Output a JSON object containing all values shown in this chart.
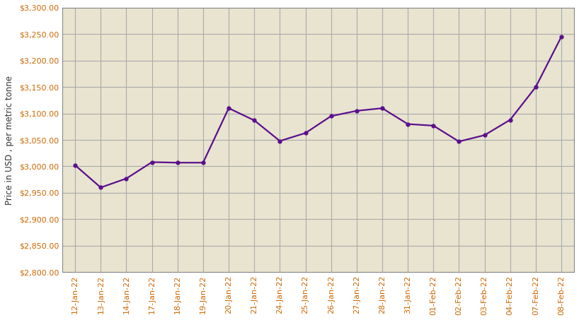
{
  "dates": [
    "12-Jan-22",
    "13-Jan-22",
    "14-Jan-22",
    "17-Jan-22",
    "18-Jan-22",
    "19-Jan-22",
    "20-Jan-22",
    "21-Jan-22",
    "24-Jan-22",
    "25-Jan-22",
    "26-Jan-22",
    "27-Jan-22",
    "28-Jan-22",
    "31-Jan-22",
    "01-Feb-22",
    "02-Feb-22",
    "03-Feb-22",
    "04-Feb-22",
    "07-Feb-22",
    "08-Feb-22"
  ],
  "values": [
    3002,
    2960,
    2977,
    3008,
    3007,
    3007,
    3110,
    3087,
    3048,
    3063,
    3095,
    3105,
    3110,
    3080,
    3077,
    3047,
    3059,
    3088,
    3150,
    3245
  ],
  "line_color": "#5B0F8C",
  "marker": "o",
  "marker_size": 3.5,
  "ylabel": "Price in USD , per metric tonne",
  "ylim": [
    2800,
    3300
  ],
  "ytick_step": 50,
  "plot_bg_color": "#E8E4D0",
  "figure_bg_color": "#FFFFFF",
  "grid_color": "#AAAAAA",
  "tick_label_color": "#CC6600",
  "tick_label_fontsize": 8,
  "ylabel_fontsize": 8.5,
  "ylabel_color": "#333333"
}
